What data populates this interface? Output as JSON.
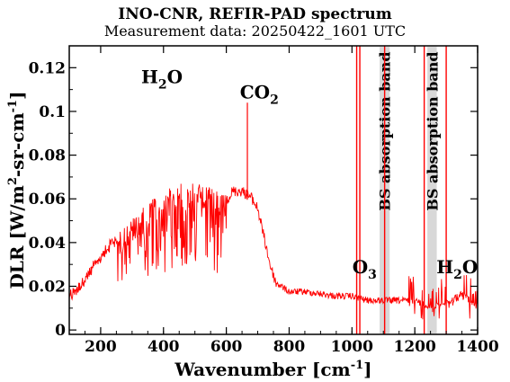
{
  "chart_data": {
    "type": "line",
    "title": "INO-CNR, REFIR-PAD spectrum",
    "subtitle": "Measurement data: 20250422_1601 UTC",
    "xlabel": "Wavenumber [cm",
    "xlabel_sup": "-1",
    "xlabel_tail": "]",
    "ylabel": "DLR [W/m",
    "ylabel_sup1": "2",
    "ylabel_mid": "-sr-cm",
    "ylabel_sup2": "-1",
    "ylabel_tail": "]",
    "xlim": [
      100,
      1400
    ],
    "ylim": [
      -0.002,
      0.13
    ],
    "xticks": [
      200,
      400,
      600,
      800,
      1000,
      1200,
      1400
    ],
    "xtick_labels": [
      "200",
      "400",
      "600",
      "800",
      "1000",
      "1200",
      "1400"
    ],
    "yticks": [
      0,
      0.02,
      0.04,
      0.06,
      0.08,
      0.1,
      0.12
    ],
    "ytick_labels": [
      "0",
      "0.02",
      "0.04",
      "0.06",
      "0.08",
      "0.1",
      "0.12"
    ],
    "series_color": "#ff0000",
    "envelope": {
      "x": [
        100,
        150,
        200,
        250,
        300,
        350,
        400,
        450,
        500,
        550,
        600,
        620,
        650,
        680,
        700,
        720,
        740,
        760,
        800,
        850,
        900,
        950,
        1000,
        1050,
        1100,
        1150,
        1200,
        1250,
        1300,
        1350,
        1400
      ],
      "y": [
        0.017,
        0.025,
        0.035,
        0.044,
        0.051,
        0.058,
        0.064,
        0.067,
        0.068,
        0.065,
        0.062,
        0.066,
        0.066,
        0.063,
        0.058,
        0.045,
        0.032,
        0.023,
        0.019,
        0.019,
        0.018,
        0.017,
        0.017,
        0.015,
        0.015,
        0.015,
        0.015,
        0.012,
        0.014,
        0.018,
        0.012
      ]
    },
    "vertical_lines": [
      1015,
      1025,
      1104,
      1230,
      1300
    ],
    "bands": [
      {
        "x0": 1088,
        "x1": 1120,
        "label": "BS absorption band"
      },
      {
        "x0": 1240,
        "x1": 1270,
        "label": "BS absorption band"
      }
    ],
    "annotations": [
      {
        "text": "H",
        "sub": "2",
        "tail": "O",
        "x": 395,
        "y": 0.113
      },
      {
        "text": "CO",
        "sub": "2",
        "tail": "",
        "x": 705,
        "y": 0.106
      },
      {
        "text": "O",
        "sub": "3",
        "tail": "",
        "x": 1040,
        "y": 0.026
      },
      {
        "text": "H",
        "sub": "2",
        "tail": "O",
        "x": 1335,
        "y": 0.026
      }
    ]
  }
}
